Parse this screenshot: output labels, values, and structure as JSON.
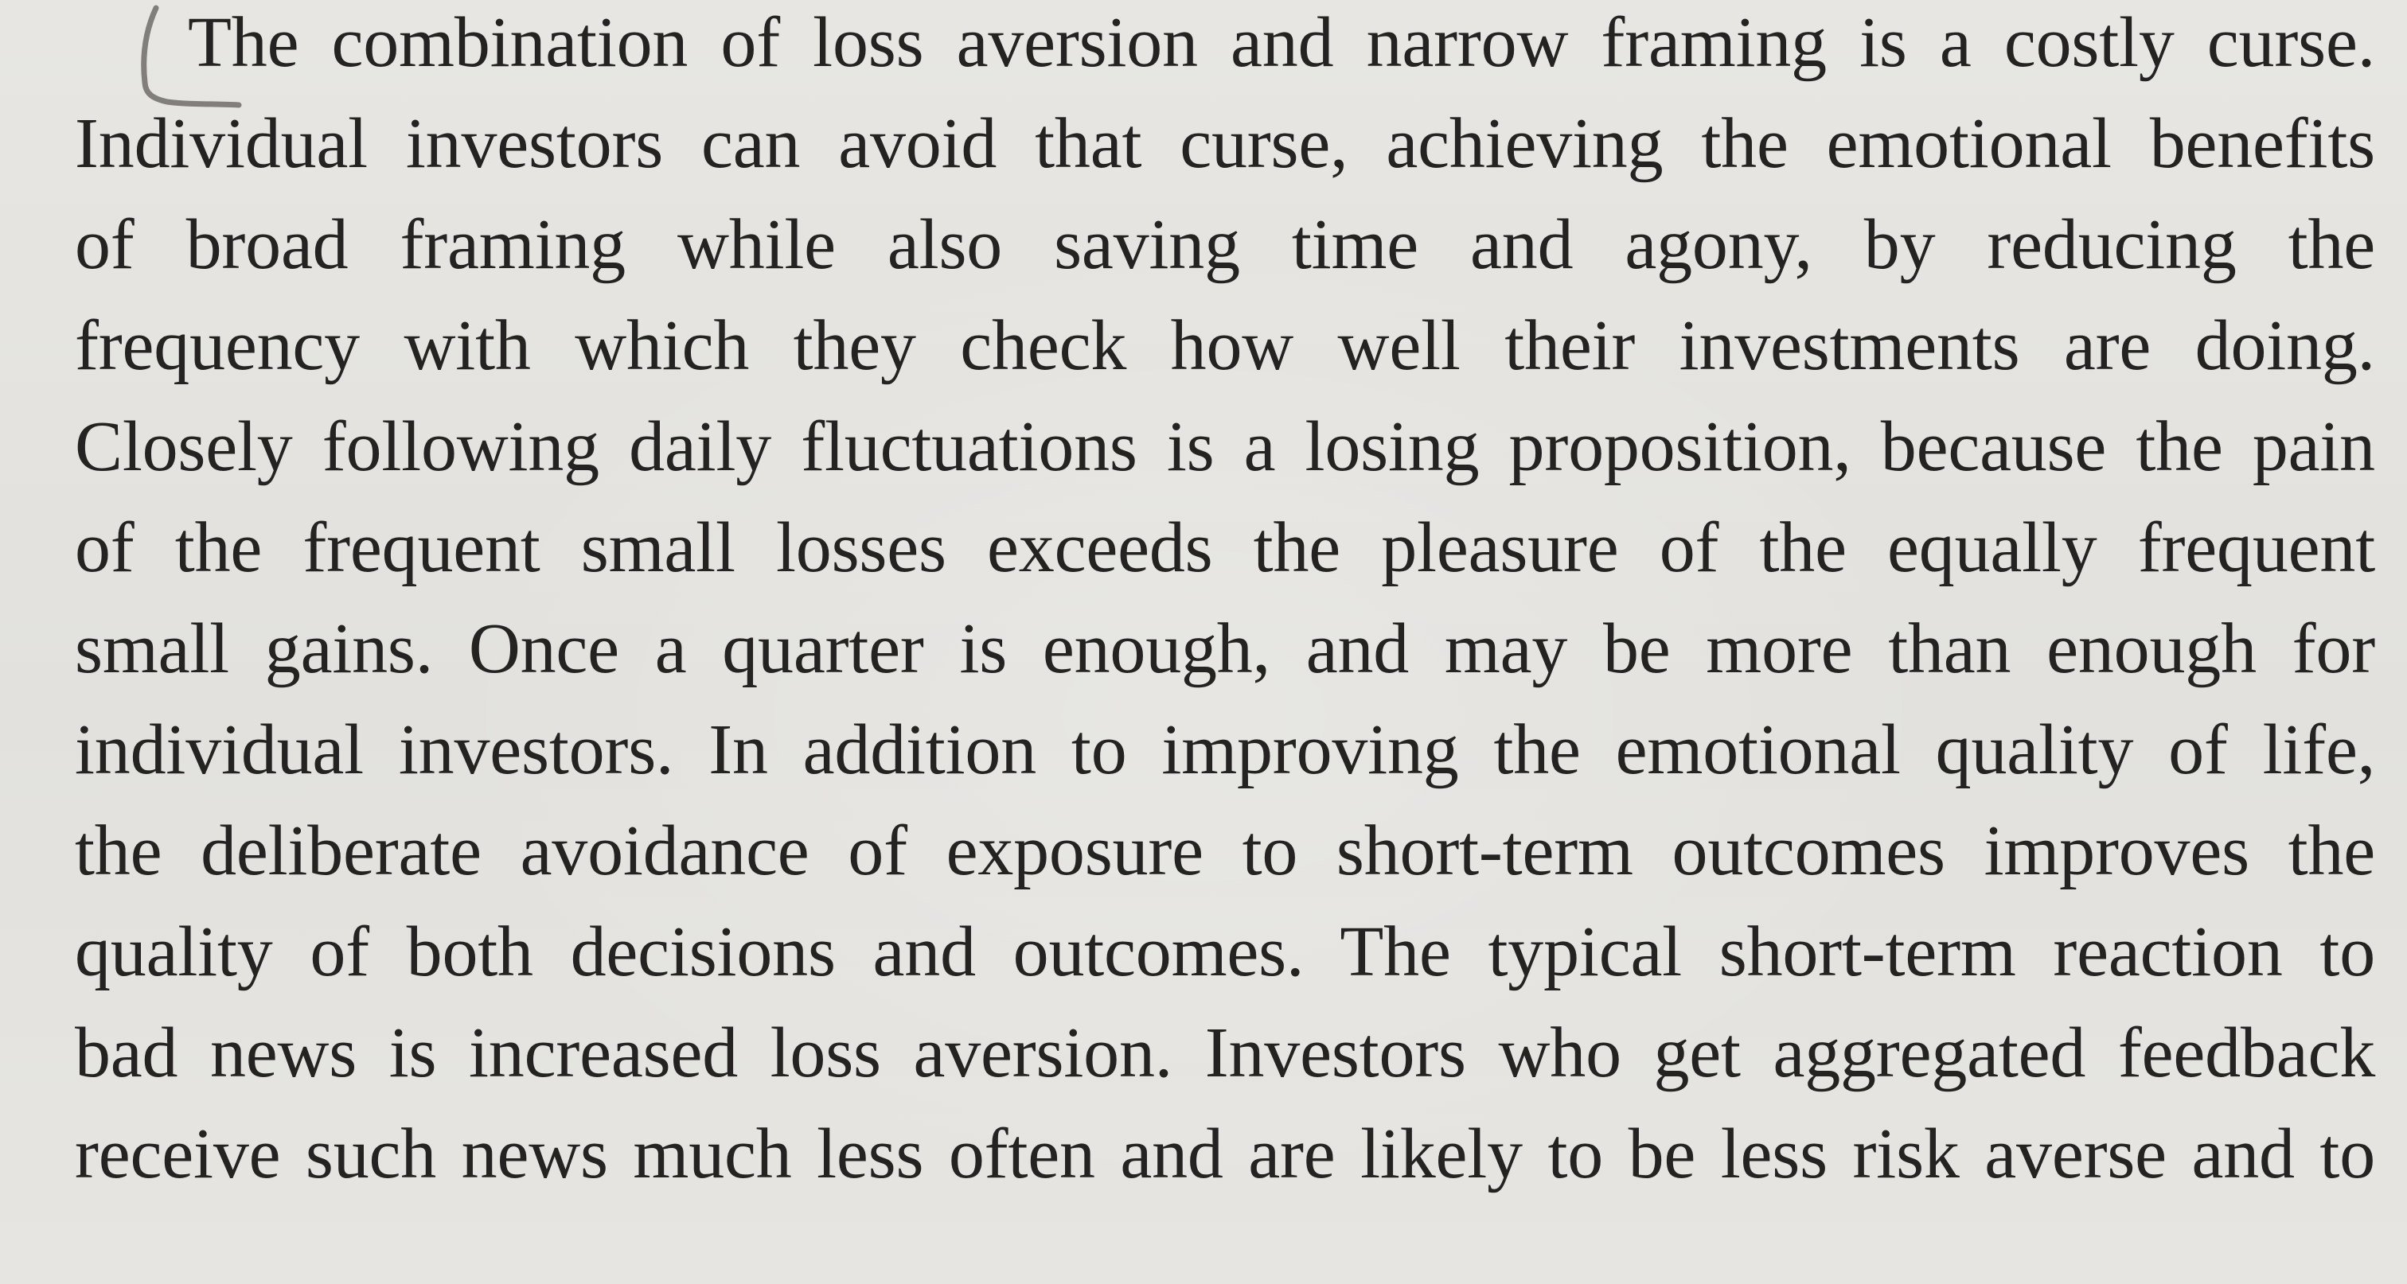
{
  "paragraph": {
    "lines": [
      "The combination of loss aversion and narrow framing is a costly curse.",
      "Individual investors can avoid that curse, achieving the emotional benefits",
      "of broad framing while also saving time and agony, by reducing the",
      "frequency with which they check how well their investments are doing.",
      "Closely following daily fluctuations is a losing proposition, because the pain",
      "of the frequent small losses exceeds the pleasure of the equally frequent",
      "small gains. Once a quarter is enough, and may be more than enough for",
      "individual investors. In addition to improving the emotional quality of life,",
      "the deliberate avoidance of exposure to short-term outcomes improves the",
      "quality of both decisions and outcomes. The typical short-term reaction to",
      "bad news is increased loss aversion. Investors who get aggregated feedback",
      "receive such news much less often and are likely to be less risk averse and to"
    ]
  },
  "annotation": {
    "type": "pencil-bracket",
    "color": "#6e6c69"
  }
}
